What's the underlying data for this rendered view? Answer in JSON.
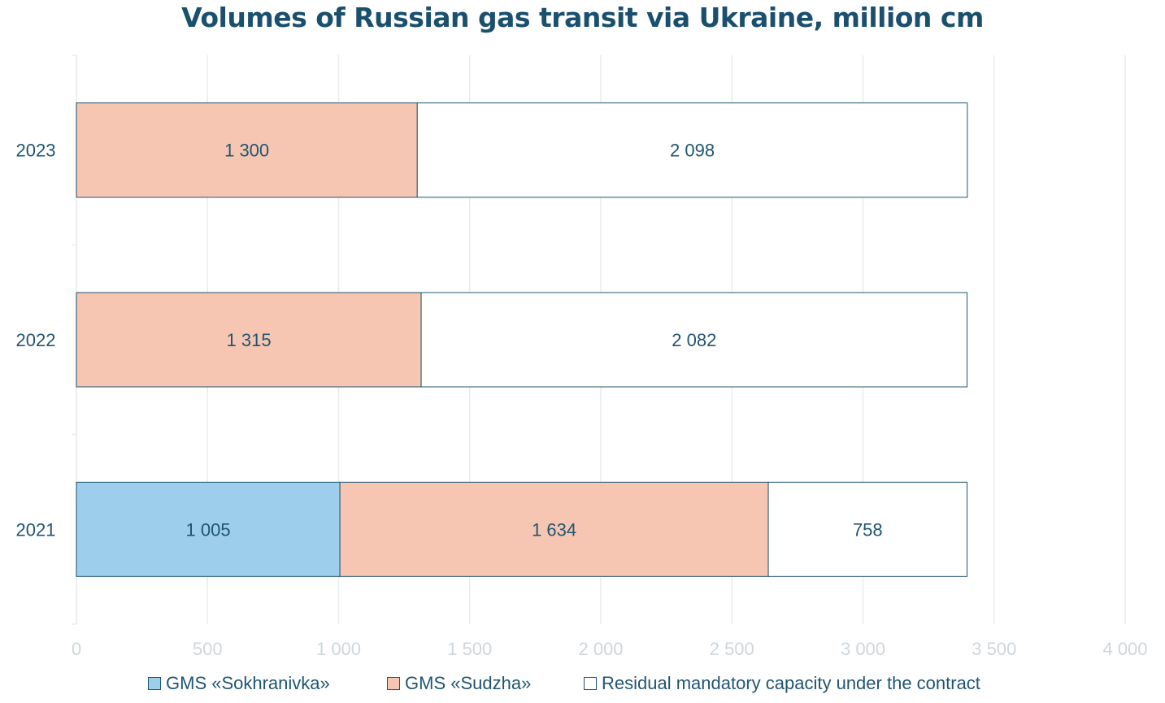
{
  "chart_data": {
    "type": "bar",
    "orientation": "horizontal",
    "stacked": true,
    "title": "Volumes of Russian gas transit via Ukraine, million cm",
    "categories": [
      "2023",
      "2022",
      "2021"
    ],
    "series": [
      {
        "name": "GMS «Sokhranivka»",
        "values": [
          0,
          0,
          1005
        ],
        "labels": [
          "",
          "",
          "1 005"
        ],
        "color": "#9dcfec"
      },
      {
        "name": "GMS «Sudzha»",
        "values": [
          1300,
          1315,
          1634
        ],
        "labels": [
          "1 300",
          "1 315",
          "1 634"
        ],
        "color": "#f6c6b2"
      },
      {
        "name": "Residual mandatory capacity under the contract",
        "values": [
          2098,
          2082,
          758
        ],
        "labels": [
          "2 098",
          "2 082",
          "758"
        ],
        "color": "#ffffff"
      }
    ],
    "xlim": [
      0,
      4000
    ],
    "xticks": [
      0,
      500,
      1000,
      1500,
      2000,
      2500,
      3000,
      3500,
      4000
    ],
    "xtick_labels": [
      "0",
      "500",
      "1 000",
      "1 500",
      "2 000",
      "2 500",
      "3 000",
      "3 500",
      "4 000"
    ],
    "grid": true,
    "legend_position": "bottom"
  },
  "colors": {
    "text": "#1f5572",
    "title": "#1a4f6e",
    "tick": "#cfd6db",
    "grid": "#e9ecee",
    "bar_border": "#1f5572"
  }
}
